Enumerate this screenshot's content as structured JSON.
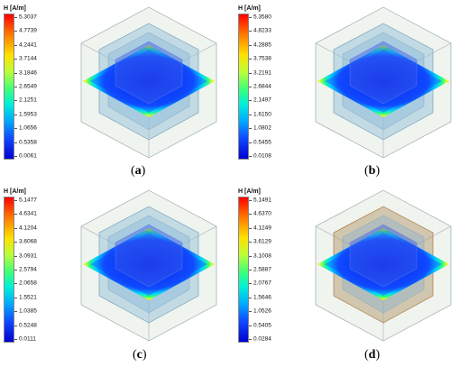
{
  "panels": [
    {
      "caption_open": "(",
      "caption_letter": "a",
      "caption_close": ")",
      "legend_title": "H [A/m]",
      "ticks": [
        "5.3037",
        "4.7739",
        "4.2441",
        "3.7144",
        "3.1846",
        "2.6549",
        "2.1251",
        "1.5953",
        "1.0656",
        "0.5358",
        "0.0061"
      ]
    },
    {
      "caption_open": "(",
      "caption_letter": "b",
      "caption_close": ")",
      "legend_title": "H [A/m]",
      "ticks": [
        "5.3580",
        "4.8233",
        "4.2885",
        "3.7538",
        "3.2191",
        "2.6844",
        "2.1497",
        "1.6150",
        "1.0802",
        "0.5455",
        "0.0108"
      ]
    },
    {
      "caption_open": "(",
      "caption_letter": "c",
      "caption_close": ")",
      "legend_title": "H [A/m]",
      "ticks": [
        "5.1477",
        "4.6341",
        "4.1204",
        "3.6068",
        "3.0931",
        "2.5794",
        "2.0658",
        "1.5521",
        "1.0385",
        "0.5248",
        "0.0111"
      ]
    },
    {
      "caption_open": "(",
      "caption_letter": "d",
      "caption_close": ")",
      "legend_title": "H [A/m]",
      "ticks": [
        "5.1491",
        "4.6370",
        "4.1249",
        "3.6129",
        "3.1008",
        "2.5887",
        "2.0767",
        "1.5646",
        "1.0526",
        "0.5405",
        "0.0284"
      ]
    }
  ]
}
